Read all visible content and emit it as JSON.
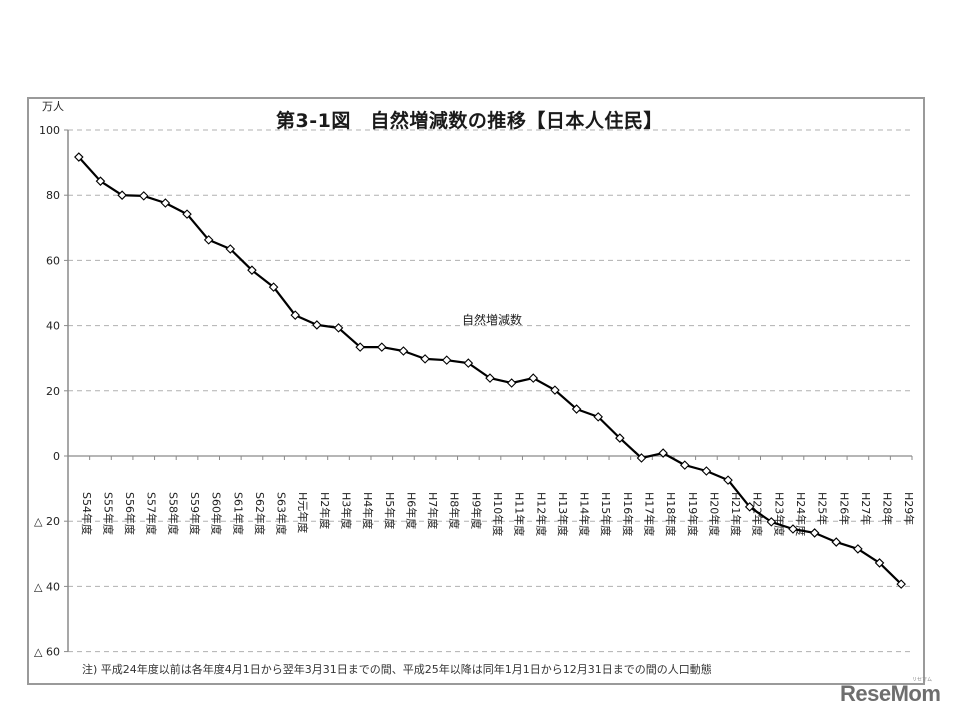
{
  "chart_data": {
    "type": "line",
    "title": "第3-1図　自然増減数の推移【日本人住民】",
    "ylabel": "万人",
    "xlabel": "",
    "ylim": [
      -60,
      100
    ],
    "yticks": [
      100,
      80,
      60,
      40,
      20,
      0,
      -20,
      -40,
      -60
    ],
    "ytick_labels": [
      "100",
      "80",
      "60",
      "40",
      "20",
      "0",
      "△ 20",
      "△ 40",
      "△ 60"
    ],
    "grid": "horizontal dashed",
    "legend": "inline label",
    "categories": [
      "S54年度",
      "S55年度",
      "S56年度",
      "S57年度",
      "S58年度",
      "S59年度",
      "S60年度",
      "S61年度",
      "S62年度",
      "S63年度",
      "H元年度",
      "H2年度",
      "H3年度",
      "H4年度",
      "H5年度",
      "H6年度",
      "H7年度",
      "H8年度",
      "H9年度",
      "H10年度",
      "H11年度",
      "H12年度",
      "H13年度",
      "H14年度",
      "H15年度",
      "H16年度",
      "H17年度",
      "H18年度",
      "H19年度",
      "H20年度",
      "H21年度",
      "H22年度",
      "H23年度",
      "H24年度",
      "H25年",
      "H26年",
      "H27年",
      "H28年",
      "H29年"
    ],
    "series": [
      {
        "name": "自然増減数",
        "values": [
          91.7,
          84.3,
          80.0,
          79.8,
          77.6,
          74.2,
          66.3,
          63.5,
          57.0,
          51.8,
          43.2,
          40.2,
          39.3,
          33.4,
          33.4,
          32.2,
          29.8,
          29.4,
          28.5,
          23.9,
          22.4,
          23.9,
          20.2,
          14.4,
          12.0,
          5.5,
          -0.6,
          0.9,
          -2.8,
          -4.6,
          -7.4,
          -15.6,
          -20.2,
          -22.4,
          -23.6,
          -26.4,
          -28.5,
          -32.8,
          -39.3
        ]
      }
    ],
    "annotation": "注) 平成24年度以前は各年度4月1日から翌年3月31日までの間、平成25年以降は同年1月1日から12月31日までの間の人口動態"
  },
  "header": {
    "unit": "万人",
    "title": "第3-1図　自然増減数の推移【日本人住民】"
  },
  "series_label": "自然増減数",
  "footer": {
    "note": "注) 平成24年度以前は各年度4月1日から翌年3月31日までの間、平成25年以降は同年1月1日から12月31日までの間の人口動態"
  },
  "watermark": {
    "logo": "ReseMom",
    "ruby": "リセマム"
  },
  "colors": {
    "line": "#000000",
    "grid": "#b0b0b0",
    "axis": "#8a8a8a",
    "frame": "#9a9a9a"
  }
}
